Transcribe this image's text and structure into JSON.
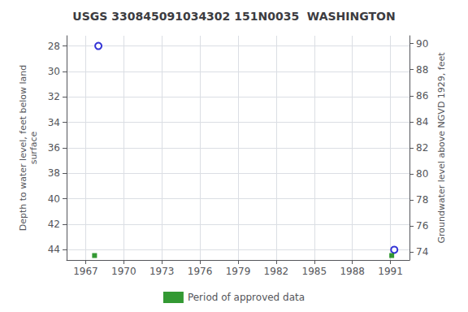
{
  "chart_data": {
    "type": "scatter",
    "title": "USGS 330845091034302 151N0035  WASHINGTON",
    "y_label": "Depth to water level, feet below land\nsurface",
    "y2_label": "Groundwater level above NGVD 1929, feet",
    "series": [
      {
        "color": "#0000cc",
        "marker": "circle",
        "x": [
          1968.0,
          1991.3
        ],
        "values": [
          28.0,
          44.0
        ]
      },
      {
        "name": "Period of approved data",
        "color": "#008000",
        "marker": "square",
        "x": [
          1967.7,
          1991.1
        ],
        "values": [
          44.45,
          44.45
        ]
      }
    ],
    "xlim": [
      1965.5,
      1992.5
    ],
    "xticks": [
      1967,
      1970,
      1973,
      1976,
      1979,
      1982,
      1985,
      1988,
      1991
    ],
    "ylim": [
      44.8,
      27.2
    ],
    "yticks": [
      28,
      30,
      32,
      34,
      36,
      38,
      40,
      42,
      44
    ],
    "y2lim": [
      73.4,
      90.6
    ],
    "y2ticks": [
      74,
      76,
      78,
      80,
      82,
      84,
      86,
      88,
      90
    ],
    "grid": true,
    "legend": "bottom"
  }
}
